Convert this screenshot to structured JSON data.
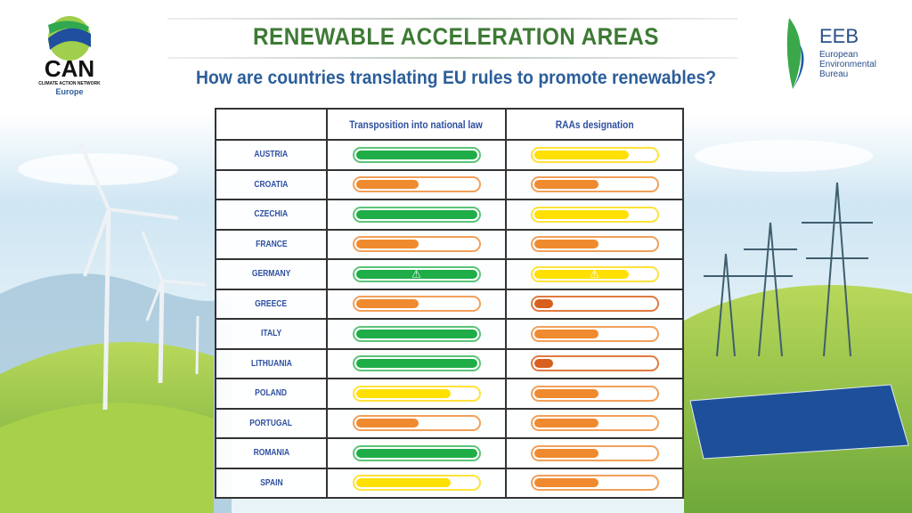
{
  "header": {
    "title": "RENEWABLE ACCELERATION AREAS",
    "subtitle": "How are countries translating EU rules to promote renewables?"
  },
  "logos": {
    "can": {
      "name": "CAN",
      "line1": "CLIMATE ACTION NETWORK",
      "line2": "Europe"
    },
    "eeb": {
      "name": "EEB",
      "line1": "European",
      "line2": "Environmental",
      "line3": "Bureau"
    }
  },
  "colors": {
    "green": "#1fad48",
    "yellow": "#ffe000",
    "orange": "#ef8a2e",
    "red": "#d8601e"
  },
  "chart_data": {
    "type": "table",
    "title": "RENEWABLE ACCELERATION AREAS",
    "columns": [
      "",
      "Transposition into national law",
      "RAAs designation"
    ],
    "rows": [
      {
        "country": "AUSTRIA",
        "transposition": {
          "level": "green",
          "value": 100
        },
        "raas": {
          "level": "yellow",
          "value": 78
        }
      },
      {
        "country": "CROATIA",
        "transposition": {
          "level": "orange",
          "value": 52
        },
        "raas": {
          "level": "orange",
          "value": 53
        }
      },
      {
        "country": "CZECHIA",
        "transposition": {
          "level": "green",
          "value": 100
        },
        "raas": {
          "level": "yellow",
          "value": 78
        }
      },
      {
        "country": "FRANCE",
        "transposition": {
          "level": "orange",
          "value": 52
        },
        "raas": {
          "level": "orange",
          "value": 53
        }
      },
      {
        "country": "GERMANY",
        "transposition": {
          "level": "green",
          "value": 100,
          "warning": true
        },
        "raas": {
          "level": "yellow",
          "value": 78,
          "warning": true
        }
      },
      {
        "country": "GREECE",
        "transposition": {
          "level": "orange",
          "value": 52
        },
        "raas": {
          "level": "red",
          "value": 16
        }
      },
      {
        "country": "ITALY",
        "transposition": {
          "level": "green",
          "value": 100
        },
        "raas": {
          "level": "orange",
          "value": 53
        }
      },
      {
        "country": "LITHUANIA",
        "transposition": {
          "level": "green",
          "value": 100
        },
        "raas": {
          "level": "red",
          "value": 16
        }
      },
      {
        "country": "POLAND",
        "transposition": {
          "level": "yellow",
          "value": 78
        },
        "raas": {
          "level": "orange",
          "value": 53
        }
      },
      {
        "country": "PORTUGAL",
        "transposition": {
          "level": "orange",
          "value": 52
        },
        "raas": {
          "level": "orange",
          "value": 53
        }
      },
      {
        "country": "ROMANIA",
        "transposition": {
          "level": "green",
          "value": 100
        },
        "raas": {
          "level": "orange",
          "value": 53
        }
      },
      {
        "country": "SPAIN",
        "transposition": {
          "level": "yellow",
          "value": 78
        },
        "raas": {
          "level": "orange",
          "value": 53
        }
      }
    ]
  }
}
